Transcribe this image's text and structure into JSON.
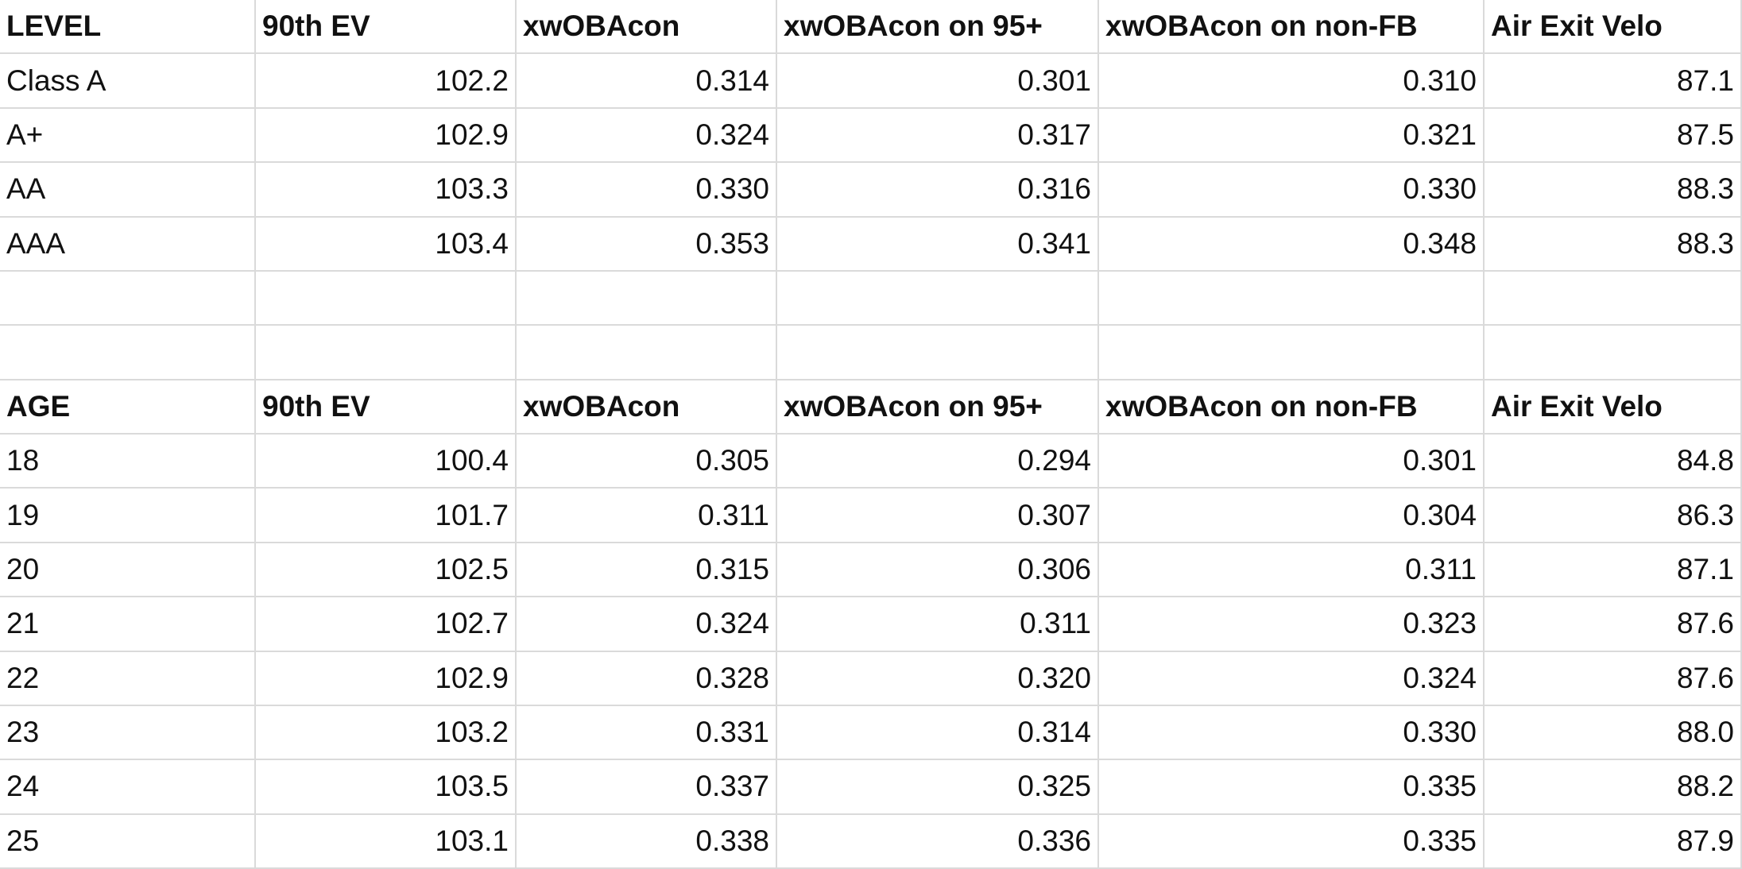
{
  "tables": [
    {
      "header": [
        "LEVEL",
        "90th EV",
        "xwOBAcon",
        "xwOBAcon on 95+",
        "xwOBAcon on non-FB",
        "Air Exit Velo"
      ],
      "rows": [
        [
          "Class A",
          "102.2",
          "0.314",
          "0.301",
          "0.310",
          "87.1"
        ],
        [
          "A+",
          "102.9",
          "0.324",
          "0.317",
          "0.321",
          "87.5"
        ],
        [
          "AA",
          "103.3",
          "0.330",
          "0.316",
          "0.330",
          "88.3"
        ],
        [
          "AAA",
          "103.4",
          "0.353",
          "0.341",
          "0.348",
          "88.3"
        ]
      ]
    },
    {
      "header": [
        "AGE",
        "90th EV",
        "xwOBAcon",
        "xwOBAcon on 95+",
        "xwOBAcon on non-FB",
        "Air Exit Velo"
      ],
      "rows": [
        [
          "18",
          "100.4",
          "0.305",
          "0.294",
          "0.301",
          "84.8"
        ],
        [
          "19",
          "101.7",
          "0.311",
          "0.307",
          "0.304",
          "86.3"
        ],
        [
          "20",
          "102.5",
          "0.315",
          "0.306",
          "0.311",
          "87.1"
        ],
        [
          "21",
          "102.7",
          "0.324",
          "0.311",
          "0.323",
          "87.6"
        ],
        [
          "22",
          "102.9",
          "0.328",
          "0.320",
          "0.324",
          "87.6"
        ],
        [
          "23",
          "103.2",
          "0.331",
          "0.314",
          "0.330",
          "88.0"
        ],
        [
          "24",
          "103.5",
          "0.337",
          "0.325",
          "0.335",
          "88.2"
        ],
        [
          "25",
          "103.1",
          "0.338",
          "0.336",
          "0.335",
          "87.9"
        ]
      ]
    }
  ]
}
